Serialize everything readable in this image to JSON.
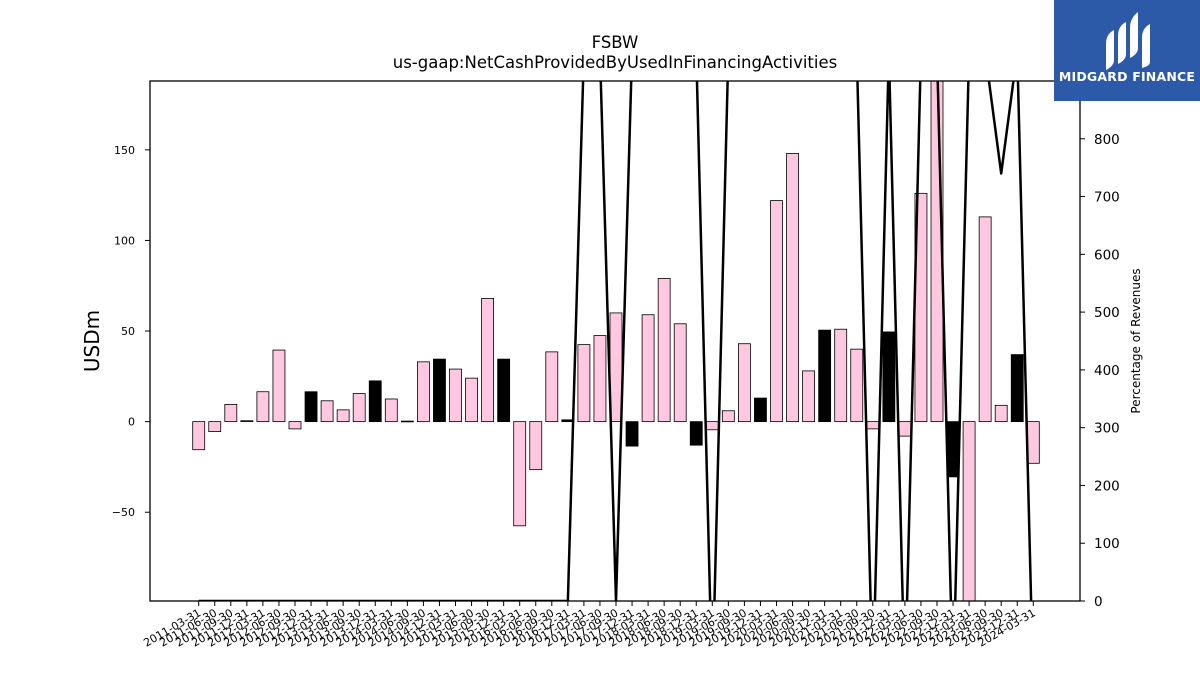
{
  "chart_data": {
    "type": "bar",
    "title": "FSBW",
    "subtitle": "us-gaap:NetCashProvidedByUsedInFinancingActivities",
    "ylabel": "USDm",
    "y2label": "Percentage of Revenues",
    "ylim": [
      -99,
      188
    ],
    "y2lim": [
      0,
      900
    ],
    "y_ticks": [
      -50,
      0,
      50,
      100,
      150
    ],
    "y2_ticks": [
      0,
      100,
      200,
      300,
      400,
      500,
      600,
      700,
      800
    ],
    "grid": false,
    "colors": {
      "positive_growth": "#ffc8e0",
      "negative_growth": "#000000",
      "line": "#000000",
      "edge": "#000000"
    },
    "categories": [
      "2011-03-31",
      "2011-06-30",
      "2011-09-30",
      "2011-12-31",
      "2012-03-31",
      "2012-06-30",
      "2012-09-30",
      "2012-12-31",
      "2013-03-31",
      "2013-06-30",
      "2013-09-30",
      "2013-12-31",
      "2014-03-31",
      "2014-06-30",
      "2014-09-30",
      "2014-12-31",
      "2015-03-31",
      "2015-06-30",
      "2015-09-30",
      "2015-12-31",
      "2016-03-31",
      "2016-06-30",
      "2016-09-30",
      "2016-12-31",
      "2017-03-31",
      "2017-06-30",
      "2017-09-30",
      "2017-12-31",
      "2018-03-31",
      "2018-06-30",
      "2018-09-30",
      "2018-12-31",
      "2019-03-31",
      "2019-06-30",
      "2019-09-30",
      "2019-12-31",
      "2020-03-31",
      "2020-06-30",
      "2020-09-30",
      "2020-12-31",
      "2021-03-31",
      "2021-06-30",
      "2021-09-30",
      "2021-12-31",
      "2022-03-31",
      "2022-06-30",
      "2022-09-30",
      "2022-12-31",
      "2023-03-31",
      "2023-06-30",
      "2023-09-30",
      "2023-12-31",
      "2024-03-31"
    ],
    "series": [
      {
        "values": [
          -15.5,
          -5.5,
          9.5,
          0.5,
          16.5,
          39.5,
          -4.0,
          16.5,
          11.5,
          6.5,
          15.5,
          22.5,
          12.5,
          0.3,
          33.0,
          34.5,
          29.0,
          24.0,
          68.0,
          34.5,
          -57.5,
          -26.5,
          38.5,
          1.0,
          42.5,
          47.5,
          60.0,
          -13.5,
          59.0,
          79.0,
          54.0,
          -13.0,
          -4.5,
          6.0,
          43.0,
          13.0,
          122.0,
          148.0,
          28.0,
          50.5,
          51.0,
          40.0,
          -4.0,
          49.5,
          -8.0,
          126.0,
          190.0,
          -30.5,
          -100.0,
          113.0,
          9.0,
          37.0,
          -23.0
        ],
        "fill": [
          "pink",
          "pink",
          "pink",
          "pink",
          "pink",
          "pink",
          "pink",
          "black",
          "pink",
          "pink",
          "pink",
          "black",
          "pink",
          "pink",
          "pink",
          "black",
          "pink",
          "pink",
          "pink",
          "black",
          "pink",
          "pink",
          "pink",
          "black",
          "pink",
          "pink",
          "pink",
          "black",
          "pink",
          "pink",
          "pink",
          "black",
          "pink",
          "pink",
          "pink",
          "black",
          "pink",
          "pink",
          "pink",
          "black",
          "pink",
          "pink",
          "pink",
          "black",
          "pink",
          "pink",
          "pink",
          "black",
          "pink",
          "pink",
          "pink",
          "black",
          "pink"
        ]
      },
      {
        "type": "line",
        "axis": "y2",
        "values": [
          0,
          0,
          0,
          0,
          0,
          0,
          0,
          0,
          0,
          0,
          0,
          0,
          0,
          0,
          0,
          0,
          0,
          0,
          0,
          0,
          0,
          0,
          0,
          0,
          950,
          950,
          0,
          950,
          950,
          950,
          950,
          950,
          -150,
          950,
          950,
          950,
          950,
          950,
          950,
          950,
          950,
          950,
          -150,
          950,
          -150,
          950,
          950,
          -150,
          950,
          950,
          740,
          950,
          -150
        ]
      }
    ]
  },
  "logo": {
    "text": "MIDGARD FINANCE"
  }
}
